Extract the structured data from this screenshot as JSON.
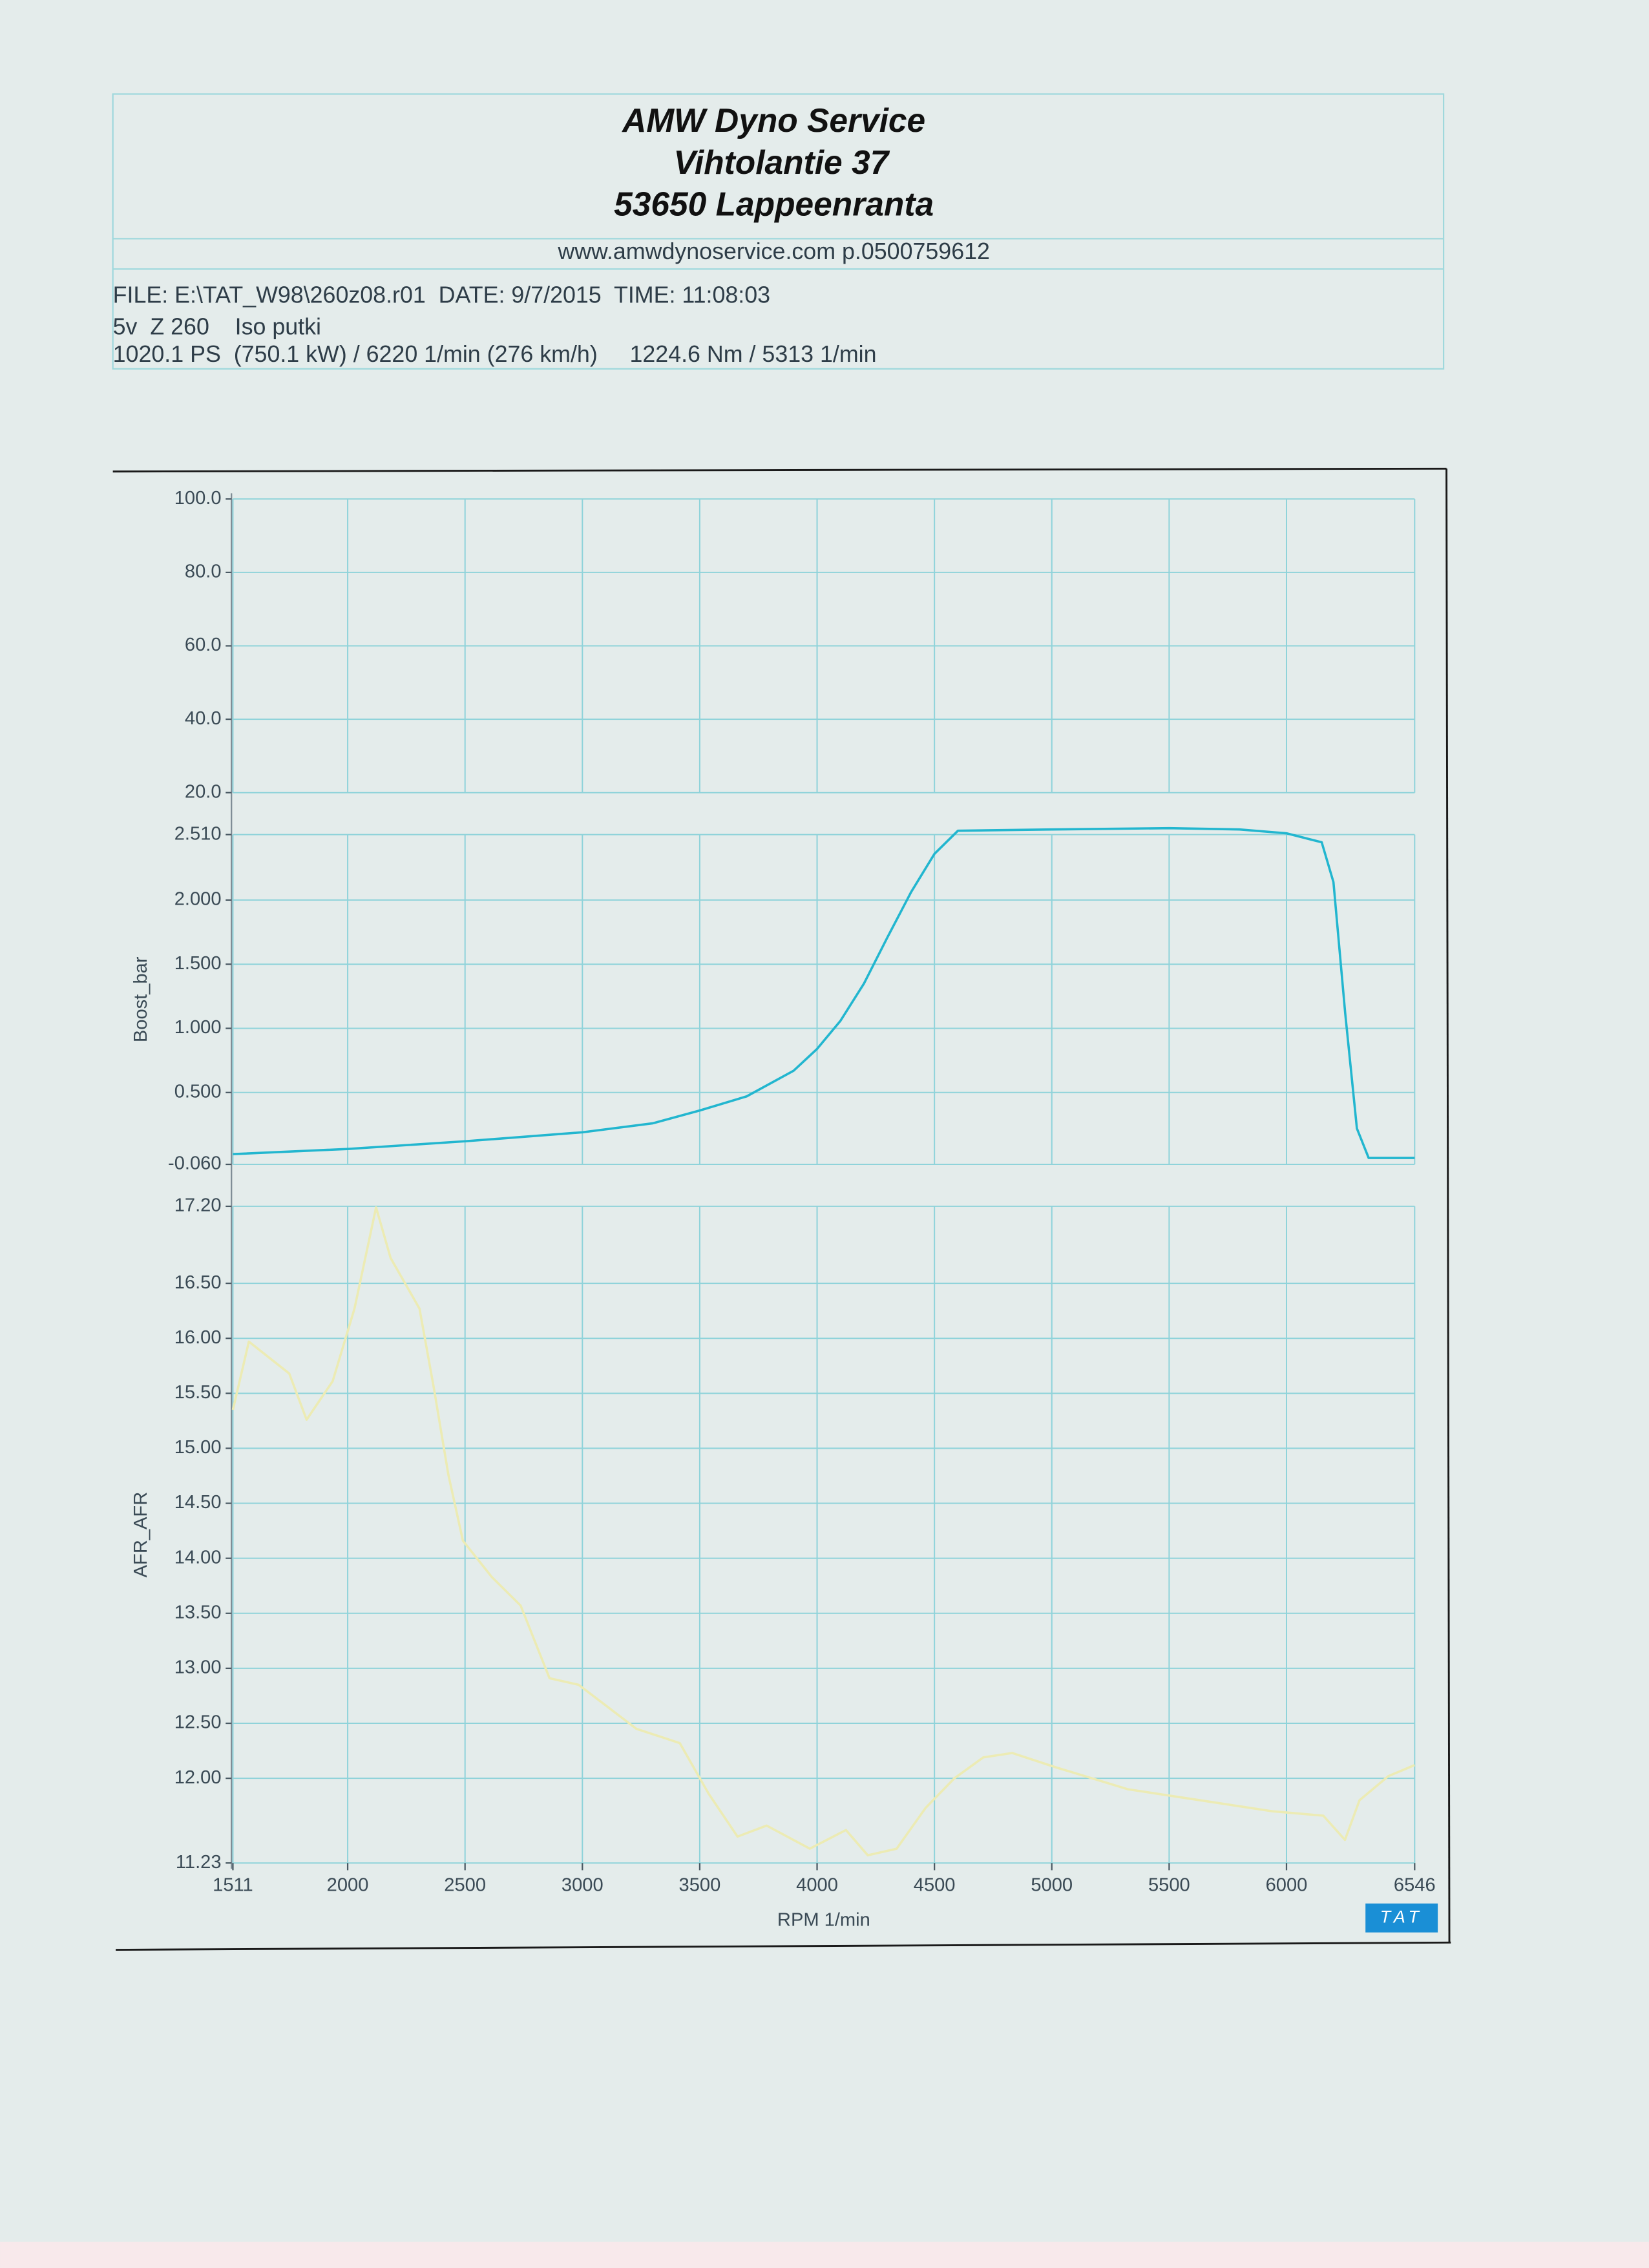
{
  "header": {
    "title_lines": [
      "AMW Dyno Service",
      "Vihtolantie 37",
      "53650 Lappeenranta"
    ],
    "contact": "www.amwdynoservice.com p.0500759612",
    "info_lines": [
      "FILE: E:\\TAT_W98\\260z08.r01  DATE: 9/7/2015  TIME: 11:08:03",
      "5v  Z 260    Iso putki",
      "1020.1 PS  (750.1 kW) / 6220 1/min (276 km/h)     1224.6 Nm / 5313 1/min"
    ]
  },
  "logo": "TAT",
  "chart_data": [
    {
      "type": "line",
      "series": [],
      "ylim": [
        20,
        100
      ],
      "yticks": [
        {
          "value": 100,
          "label": "100.0"
        },
        {
          "value": 80,
          "label": "80.0"
        },
        {
          "value": 60,
          "label": "60.0"
        },
        {
          "value": 40,
          "label": "40.0"
        },
        {
          "value": 20,
          "label": "20.0"
        }
      ],
      "grid": true
    },
    {
      "type": "line",
      "y_label": "Boost_bar",
      "x": [
        1511,
        2000,
        2500,
        3000,
        3300,
        3500,
        3700,
        3900,
        4000,
        4100,
        4200,
        4300,
        4400,
        4500,
        4600,
        5000,
        5500,
        5800,
        6000,
        6150,
        6200,
        6250,
        6300,
        6350,
        6546
      ],
      "series": [
        {
          "name": "Boost_bar",
          "color": "#22b6cf",
          "values": [
            0.02,
            0.06,
            0.12,
            0.19,
            0.26,
            0.36,
            0.47,
            0.67,
            0.84,
            1.06,
            1.35,
            1.71,
            2.06,
            2.36,
            2.54,
            2.55,
            2.56,
            2.55,
            2.52,
            2.45,
            2.14,
            1.12,
            0.22,
            -0.01,
            -0.01
          ]
        }
      ],
      "xlim": [
        1511,
        6546
      ],
      "ylim": [
        -0.06,
        2.51
      ],
      "yticks": [
        {
          "value": 2.51,
          "label": "2.510"
        },
        {
          "value": 2,
          "label": "2.000"
        },
        {
          "value": 1.5,
          "label": "1.500"
        },
        {
          "value": 1,
          "label": "1.000"
        },
        {
          "value": 0.5,
          "label": "0.500"
        },
        {
          "value": -0.06,
          "label": "-0.060"
        }
      ],
      "grid": true
    },
    {
      "type": "line",
      "y_label": "AFR_AFR",
      "x_label": "RPM 1/min",
      "x": [
        1511,
        1579,
        1751,
        1825,
        1936,
        2029,
        2121,
        2183,
        2306,
        2367,
        2429,
        2491,
        2614,
        2737,
        2860,
        2984,
        3107,
        3230,
        3415,
        3538,
        3661,
        3785,
        3969,
        4123,
        4216,
        4339,
        4462,
        4585,
        4708,
        4831,
        5017,
        5325,
        5633,
        5941,
        6157,
        6249,
        6311,
        6434,
        6546
      ],
      "series": [
        {
          "name": "AFR_AFR",
          "color": "#ecebb4",
          "values": [
            15.35,
            15.97,
            15.68,
            15.26,
            15.61,
            16.27,
            17.19,
            16.73,
            16.27,
            15.55,
            14.76,
            14.16,
            13.83,
            13.57,
            12.91,
            12.85,
            12.65,
            12.45,
            12.32,
            11.86,
            11.47,
            11.57,
            11.36,
            11.53,
            11.3,
            11.36,
            11.73,
            12.0,
            12.19,
            12.23,
            12.1,
            11.9,
            11.8,
            11.7,
            11.66,
            11.44,
            11.8,
            12.02,
            12.12
          ]
        }
      ],
      "xlim": [
        1511,
        6546
      ],
      "xticks": [
        1511,
        2000,
        2500,
        3000,
        3500,
        4000,
        4500,
        5000,
        5500,
        6000,
        6546
      ],
      "ylim": [
        11.23,
        17.2
      ],
      "yticks": [
        {
          "value": 17.2,
          "label": "17.20"
        },
        {
          "value": 16.5,
          "label": "16.50"
        },
        {
          "value": 16,
          "label": "16.00"
        },
        {
          "value": 15.5,
          "label": "15.50"
        },
        {
          "value": 15,
          "label": "15.00"
        },
        {
          "value": 14.5,
          "label": "14.50"
        },
        {
          "value": 14,
          "label": "14.00"
        },
        {
          "value": 13.5,
          "label": "13.50"
        },
        {
          "value": 13,
          "label": "13.00"
        },
        {
          "value": 12.5,
          "label": "12.50"
        },
        {
          "value": 12,
          "label": "12.00"
        },
        {
          "value": 11.23,
          "label": "11.23"
        }
      ],
      "grid": true
    }
  ]
}
